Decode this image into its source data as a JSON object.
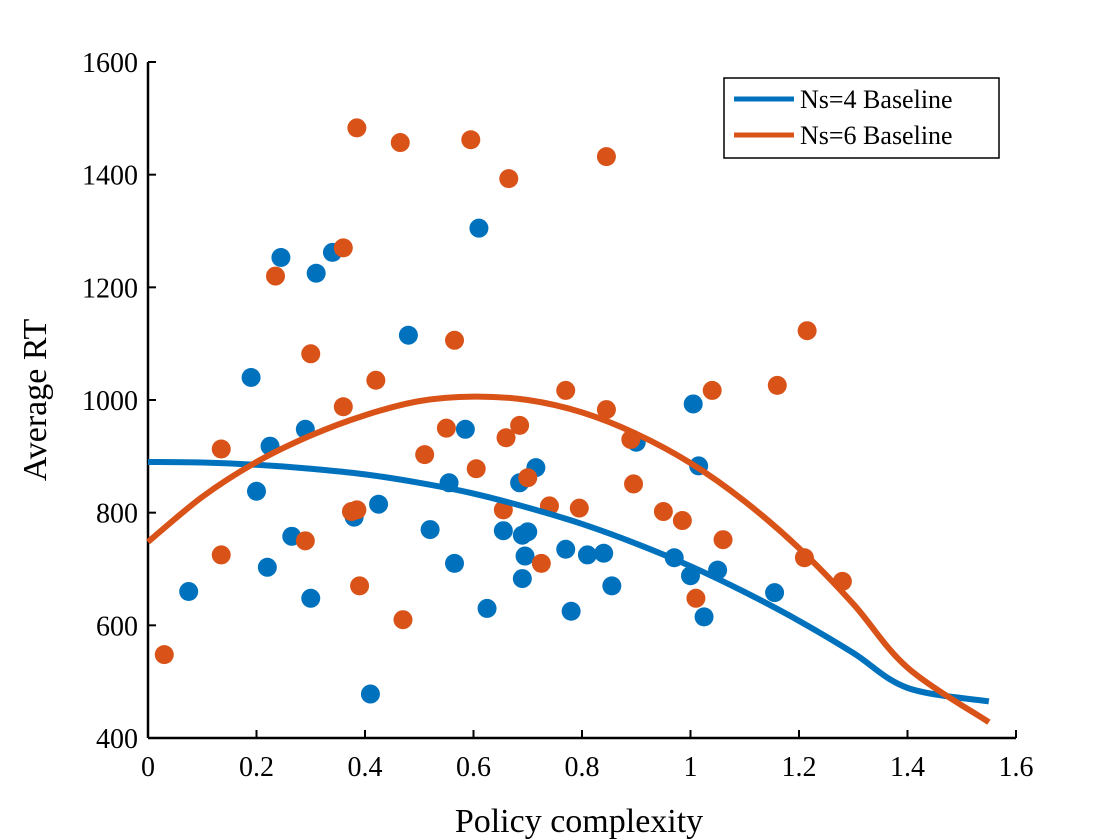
{
  "chart_data": {
    "type": "scatter",
    "title": "",
    "xlabel": "Policy complexity",
    "ylabel": "Average RT",
    "xlim": [
      0,
      1.6
    ],
    "ylim": [
      400,
      1600
    ],
    "xticks": [
      "0",
      "0.2",
      "0.4",
      "0.6",
      "0.8",
      "1",
      "1.2",
      "1.4",
      "1.6"
    ],
    "yticks": [
      "400",
      "600",
      "800",
      "1000",
      "1200",
      "1400",
      "1600"
    ],
    "grid": false,
    "legend_position": "top-right",
    "series": [
      {
        "name": "Ns=4 Baseline",
        "color": "#0072BD",
        "points": [
          [
            0.075,
            660
          ],
          [
            0.19,
            1040
          ],
          [
            0.2,
            838
          ],
          [
            0.22,
            703
          ],
          [
            0.225,
            918
          ],
          [
            0.245,
            1253
          ],
          [
            0.265,
            758
          ],
          [
            0.29,
            948
          ],
          [
            0.3,
            648
          ],
          [
            0.31,
            1225
          ],
          [
            0.34,
            1262
          ],
          [
            0.38,
            792
          ],
          [
            0.41,
            478
          ],
          [
            0.425,
            815
          ],
          [
            0.48,
            1115
          ],
          [
            0.52,
            770
          ],
          [
            0.555,
            853
          ],
          [
            0.565,
            710
          ],
          [
            0.585,
            948
          ],
          [
            0.61,
            1305
          ],
          [
            0.625,
            630
          ],
          [
            0.655,
            768
          ],
          [
            0.685,
            853
          ],
          [
            0.69,
            760
          ],
          [
            0.69,
            683
          ],
          [
            0.695,
            723
          ],
          [
            0.7,
            766
          ],
          [
            0.715,
            880
          ],
          [
            0.77,
            735
          ],
          [
            0.78,
            625
          ],
          [
            0.81,
            725
          ],
          [
            0.84,
            728
          ],
          [
            0.855,
            670
          ],
          [
            0.9,
            925
          ],
          [
            0.97,
            720
          ],
          [
            1.0,
            688
          ],
          [
            1.005,
            993
          ],
          [
            1.015,
            883
          ],
          [
            1.025,
            615
          ],
          [
            1.05,
            698
          ],
          [
            1.155,
            658
          ]
        ],
        "fit": {
          "type": "quadratic",
          "line": [
            [
              0,
              890
            ],
            [
              0.1,
              889
            ],
            [
              0.2,
              885
            ],
            [
              0.3,
              878
            ],
            [
              0.4,
              868
            ],
            [
              0.5,
              853
            ],
            [
              0.6,
              834
            ],
            [
              0.7,
              809
            ],
            [
              0.8,
              780
            ],
            [
              0.9,
              745
            ],
            [
              1.0,
              705
            ],
            [
              1.1,
              659
            ],
            [
              1.2,
              608
            ],
            [
              1.3,
              551
            ],
            [
              1.4,
              489
            ],
            [
              1.55,
              465
            ]
          ]
        }
      },
      {
        "name": "Ns=6 Baseline",
        "color": "#D95319",
        "points": [
          [
            0.03,
            548
          ],
          [
            0.135,
            913
          ],
          [
            0.135,
            725
          ],
          [
            0.235,
            1220
          ],
          [
            0.29,
            750
          ],
          [
            0.3,
            1082
          ],
          [
            0.36,
            988
          ],
          [
            0.36,
            1270
          ],
          [
            0.375,
            802
          ],
          [
            0.385,
            805
          ],
          [
            0.385,
            1483
          ],
          [
            0.39,
            670
          ],
          [
            0.42,
            1035
          ],
          [
            0.465,
            1457
          ],
          [
            0.47,
            610
          ],
          [
            0.51,
            903
          ],
          [
            0.55,
            950
          ],
          [
            0.565,
            1106
          ],
          [
            0.595,
            1462
          ],
          [
            0.605,
            878
          ],
          [
            0.655,
            805
          ],
          [
            0.66,
            933
          ],
          [
            0.665,
            1393
          ],
          [
            0.685,
            955
          ],
          [
            0.7,
            862
          ],
          [
            0.725,
            710
          ],
          [
            0.74,
            812
          ],
          [
            0.77,
            1017
          ],
          [
            0.795,
            808
          ],
          [
            0.845,
            983
          ],
          [
            0.845,
            1432
          ],
          [
            0.89,
            930
          ],
          [
            0.895,
            851
          ],
          [
            0.95,
            802
          ],
          [
            0.985,
            786
          ],
          [
            1.01,
            648
          ],
          [
            1.04,
            1017
          ],
          [
            1.06,
            752
          ],
          [
            1.16,
            1026
          ],
          [
            1.21,
            720
          ],
          [
            1.215,
            1123
          ],
          [
            1.28,
            678
          ]
        ],
        "fit": {
          "type": "quadratic",
          "line": [
            [
              0,
              748
            ],
            [
              0.1,
              828
            ],
            [
              0.2,
              890
            ],
            [
              0.3,
              937
            ],
            [
              0.4,
              973
            ],
            [
              0.5,
              998
            ],
            [
              0.6,
              1006
            ],
            [
              0.7,
              1000
            ],
            [
              0.8,
              978
            ],
            [
              0.9,
              940
            ],
            [
              1.0,
              888
            ],
            [
              1.1,
              820
            ],
            [
              1.2,
              737
            ],
            [
              1.3,
              638
            ],
            [
              1.4,
              525
            ],
            [
              1.55,
              428
            ]
          ]
        }
      }
    ]
  }
}
